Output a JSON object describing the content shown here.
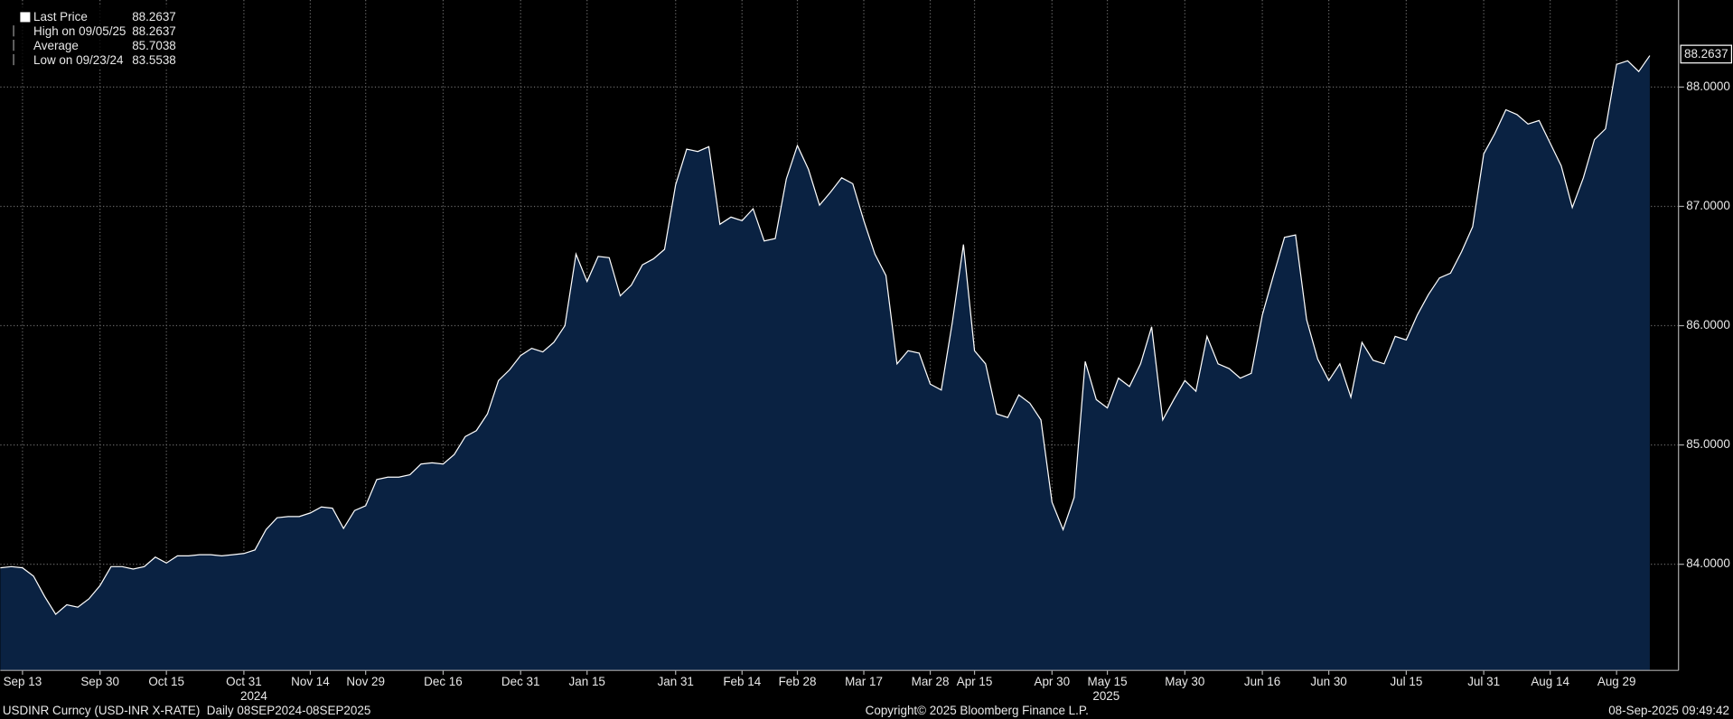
{
  "chart_data": {
    "type": "area",
    "series": [
      {
        "name": "Last Price",
        "color": "#ffffff",
        "area_color": "#0a2242",
        "values": [
          83.97,
          83.98,
          83.97,
          83.9,
          83.73,
          83.58,
          83.66,
          83.64,
          83.71,
          83.82,
          83.98,
          83.98,
          83.96,
          83.98,
          84.06,
          84.01,
          84.07,
          84.07,
          84.08,
          84.08,
          84.07,
          84.08,
          84.09,
          84.12,
          84.29,
          84.39,
          84.4,
          84.4,
          84.43,
          84.48,
          84.47,
          84.3,
          84.45,
          84.49,
          84.71,
          84.73,
          84.73,
          84.75,
          84.84,
          84.85,
          84.84,
          84.92,
          85.07,
          85.12,
          85.26,
          85.54,
          85.63,
          85.75,
          85.81,
          85.78,
          85.86,
          86.0,
          86.6,
          86.37,
          86.58,
          86.57,
          86.25,
          86.34,
          86.51,
          86.56,
          86.64,
          87.18,
          87.48,
          87.46,
          87.5,
          86.85,
          86.91,
          86.88,
          86.98,
          86.71,
          86.73,
          87.23,
          87.51,
          87.31,
          87.01,
          87.12,
          87.24,
          87.19,
          86.88,
          86.6,
          86.42,
          85.68,
          85.79,
          85.77,
          85.51,
          85.46,
          86.03,
          86.68,
          85.79,
          85.68,
          85.26,
          85.23,
          85.42,
          85.35,
          85.21,
          84.52,
          84.29,
          84.56,
          85.7,
          85.38,
          85.31,
          85.56,
          85.49,
          85.68,
          85.99,
          85.21,
          85.38,
          85.54,
          85.45,
          85.91,
          85.68,
          85.64,
          85.56,
          85.6,
          86.09,
          86.42,
          86.74,
          86.76,
          86.05,
          85.72,
          85.54,
          85.68,
          85.4,
          85.86,
          85.71,
          85.68,
          85.91,
          85.88,
          86.09,
          86.26,
          86.4,
          86.44,
          86.62,
          86.83,
          87.44,
          87.61,
          87.81,
          87.77,
          87.69,
          87.72,
          87.53,
          87.34,
          86.99,
          87.24,
          87.56,
          87.65,
          88.19,
          88.22,
          88.13,
          88.2637
        ]
      }
    ],
    "categories": [
      null,
      null,
      "Sep 13",
      null,
      null,
      null,
      null,
      null,
      null,
      "Sep 30",
      null,
      null,
      null,
      null,
      null,
      "Oct 15",
      null,
      null,
      null,
      null,
      null,
      null,
      "Oct 31",
      null,
      null,
      null,
      null,
      null,
      "Nov 14",
      null,
      null,
      null,
      null,
      "Nov 29",
      null,
      null,
      null,
      null,
      null,
      null,
      "Dec 16",
      null,
      null,
      null,
      null,
      null,
      null,
      "Dec 31",
      null,
      null,
      null,
      null,
      null,
      "Jan 15",
      null,
      null,
      null,
      null,
      null,
      null,
      null,
      "Jan 31",
      null,
      null,
      null,
      null,
      null,
      "Feb 14",
      null,
      null,
      null,
      null,
      "Feb 28",
      null,
      null,
      null,
      null,
      null,
      "Mar 17",
      null,
      null,
      null,
      null,
      null,
      "Mar 28",
      null,
      null,
      null,
      "Apr 15",
      null,
      null,
      null,
      null,
      null,
      null,
      "Apr 30",
      null,
      null,
      null,
      null,
      "May 15",
      null,
      null,
      null,
      null,
      null,
      null,
      "May 30",
      null,
      null,
      null,
      null,
      null,
      null,
      "Jun 16",
      null,
      null,
      null,
      null,
      null,
      "Jun 30",
      null,
      null,
      null,
      null,
      null,
      null,
      "Jul 15",
      null,
      null,
      null,
      null,
      null,
      null,
      "Jul 31",
      null,
      null,
      null,
      null,
      null,
      "Aug 14",
      null,
      null,
      null,
      null,
      null,
      "Aug 29",
      null,
      null,
      null
    ],
    "year_labels": [
      {
        "index": 22,
        "label": "2024"
      },
      {
        "index": 99,
        "label": "2025"
      }
    ],
    "ylim": [
      83.11,
      88.73
    ],
    "yticks": [
      {
        "value": 84,
        "label": "84.0000"
      },
      {
        "value": 85,
        "label": "85.0000"
      },
      {
        "value": 86,
        "label": "86.0000"
      },
      {
        "value": 87,
        "label": "87.0000"
      },
      {
        "value": 88,
        "label": "88.0000"
      }
    ],
    "grid": true,
    "last_value": 88.2637,
    "stats": [
      {
        "label": "High on 09/05/25",
        "value": 88.2637
      },
      {
        "label": "Average",
        "value": 85.7038
      },
      {
        "label": "Low on 09/23/24",
        "value": 83.5538
      }
    ],
    "footer": {
      "left": "USDINR Curncy (USD-INR X-RATE)  Daily 08SEP2024-08SEP2025",
      "center": "Copyright© 2025 Bloomberg Finance L.P.",
      "right": "08-Sep-2025 09:49:42"
    }
  }
}
